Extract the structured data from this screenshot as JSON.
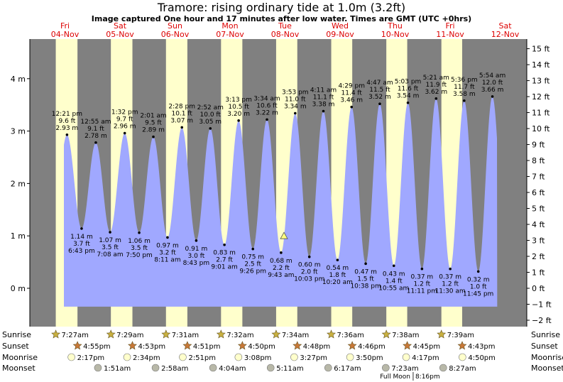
{
  "title": "Tramore: rising  ordinary tide at 1.0m (3.2ft)",
  "subtitle": "Image captured One hour and 17 minutes after low water. Times are GMT (UTC +0hrs)",
  "colors": {
    "night": "#808080",
    "day": "#ffffcc",
    "tide": "#a0a8ff",
    "date_text": "#dd0000",
    "now_marker": "#ffff80"
  },
  "chart_data": {
    "type": "area",
    "title": "Tramore: rising  ordinary tide at 1.0m (3.2ft)",
    "days": [
      {
        "dow": "Fri",
        "date": "04-Nov"
      },
      {
        "dow": "Sat",
        "date": "05-Nov"
      },
      {
        "dow": "Sun",
        "date": "06-Nov"
      },
      {
        "dow": "Mon",
        "date": "07-Nov"
      },
      {
        "dow": "Tue",
        "date": "08-Nov"
      },
      {
        "dow": "Wed",
        "date": "09-Nov"
      },
      {
        "dow": "Thu",
        "date": "10-Nov"
      },
      {
        "dow": "Fri",
        "date": "11-Nov"
      },
      {
        "dow": "Sat",
        "date": "12-Nov"
      }
    ],
    "y_left": {
      "unit": "m",
      "ylim": [
        -0.6,
        4.6
      ],
      "ticks": [
        "0 m",
        "1 m",
        "2 m",
        "3 m",
        "4 m"
      ],
      "tick_values": [
        0,
        1,
        2,
        3,
        4
      ]
    },
    "y_right": {
      "unit": "ft",
      "ticks": [
        "−2 ft",
        "−1 ft",
        "0 ft",
        "1 ft",
        "2 ft",
        "3 ft",
        "4 ft",
        "5 ft",
        "6 ft",
        "7 ft",
        "8 ft",
        "9 ft",
        "10 ft",
        "11 ft",
        "12 ft",
        "13 ft",
        "14 ft",
        "15 ft"
      ],
      "tick_values": [
        -2,
        -1,
        0,
        1,
        2,
        3,
        4,
        5,
        6,
        7,
        8,
        9,
        10,
        11,
        12,
        13,
        14,
        15
      ]
    },
    "tides": [
      {
        "day": 0,
        "time": "12:21 pm",
        "m": 2.93,
        "ft": "9.6 ft",
        "m_label": "2.93 m",
        "type": "high"
      },
      {
        "day": 0,
        "time": "6:43 pm",
        "m": 1.14,
        "ft": "3.7 ft",
        "m_label": "1.14 m",
        "type": "low"
      },
      {
        "day": 1,
        "time": "12:55 am",
        "m": 2.78,
        "ft": "9.1 ft",
        "m_label": "2.78 m",
        "type": "high"
      },
      {
        "day": 1,
        "time": "7:08 am",
        "m": 1.07,
        "ft": "3.5 ft",
        "m_label": "1.07 m",
        "type": "low"
      },
      {
        "day": 1,
        "time": "1:32 pm",
        "m": 2.96,
        "ft": "9.7 ft",
        "m_label": "2.96 m",
        "type": "high"
      },
      {
        "day": 1,
        "time": "7:50 pm",
        "m": 1.06,
        "ft": "3.5 ft",
        "m_label": "1.06 m",
        "type": "low"
      },
      {
        "day": 2,
        "time": "2:01 am",
        "m": 2.89,
        "ft": "9.5 ft",
        "m_label": "2.89 m",
        "type": "high"
      },
      {
        "day": 2,
        "time": "8:11 am",
        "m": 0.97,
        "ft": "3.2 ft",
        "m_label": "0.97 m",
        "type": "low"
      },
      {
        "day": 2,
        "time": "2:28 pm",
        "m": 3.07,
        "ft": "10.1 ft",
        "m_label": "3.07 m",
        "type": "high"
      },
      {
        "day": 2,
        "time": "8:43 pm",
        "m": 0.91,
        "ft": "3.0 ft",
        "m_label": "0.91 m",
        "type": "low"
      },
      {
        "day": 3,
        "time": "2:52 am",
        "m": 3.05,
        "ft": "10.0 ft",
        "m_label": "3.05 m",
        "type": "high"
      },
      {
        "day": 3,
        "time": "9:01 am",
        "m": 0.83,
        "ft": "2.7 ft",
        "m_label": "0.83 m",
        "type": "low"
      },
      {
        "day": 3,
        "time": "3:13 pm",
        "m": 3.2,
        "ft": "10.5 ft",
        "m_label": "3.20 m",
        "type": "high"
      },
      {
        "day": 3,
        "time": "9:26 pm",
        "m": 0.75,
        "ft": "2.5 ft",
        "m_label": "0.75 m",
        "type": "low"
      },
      {
        "day": 4,
        "time": "3:34 am",
        "m": 3.22,
        "ft": "10.6 ft",
        "m_label": "3.22 m",
        "type": "high"
      },
      {
        "day": 4,
        "time": "9:43 am",
        "m": 0.68,
        "ft": "2.2 ft",
        "m_label": "0.68 m",
        "type": "low"
      },
      {
        "day": 4,
        "time": "3:53 pm",
        "m": 3.34,
        "ft": "11.0 ft",
        "m_label": "3.34 m",
        "type": "high"
      },
      {
        "day": 4,
        "time": "10:03 pm",
        "m": 0.6,
        "ft": "2.0 ft",
        "m_label": "0.60 m",
        "type": "low"
      },
      {
        "day": 5,
        "time": "4:11 am",
        "m": 3.38,
        "ft": "11.1 ft",
        "m_label": "3.38 m",
        "type": "high"
      },
      {
        "day": 5,
        "time": "10:20 am",
        "m": 0.54,
        "ft": "1.8 ft",
        "m_label": "0.54 m",
        "type": "low"
      },
      {
        "day": 5,
        "time": "4:29 pm",
        "m": 3.46,
        "ft": "11.4 ft",
        "m_label": "3.46 m",
        "type": "high"
      },
      {
        "day": 5,
        "time": "10:38 pm",
        "m": 0.47,
        "ft": "1.5 ft",
        "m_label": "0.47 m",
        "type": "low"
      },
      {
        "day": 6,
        "time": "4:47 am",
        "m": 3.52,
        "ft": "11.5 ft",
        "m_label": "3.52 m",
        "type": "high"
      },
      {
        "day": 6,
        "time": "10:55 am",
        "m": 0.43,
        "ft": "1.4 ft",
        "m_label": "0.43 m",
        "type": "low"
      },
      {
        "day": 6,
        "time": "5:03 pm",
        "m": 3.54,
        "ft": "11.6 ft",
        "m_label": "3.54 m",
        "type": "high"
      },
      {
        "day": 6,
        "time": "11:11 pm",
        "m": 0.37,
        "ft": "1.2 ft",
        "m_label": "0.37 m",
        "type": "low"
      },
      {
        "day": 7,
        "time": "5:21 am",
        "m": 3.62,
        "ft": "11.9 ft",
        "m_label": "3.62 m",
        "type": "high"
      },
      {
        "day": 7,
        "time": "11:30 am",
        "m": 0.37,
        "ft": "1.2 ft",
        "m_label": "0.37 m",
        "type": "low"
      },
      {
        "day": 7,
        "time": "5:36 pm",
        "m": 3.58,
        "ft": "11.7 ft",
        "m_label": "3.58 m",
        "type": "high"
      },
      {
        "day": 7,
        "time": "11:45 pm",
        "m": 0.32,
        "ft": "1.0 ft",
        "m_label": "0.32 m",
        "type": "low"
      },
      {
        "day": 8,
        "time": "5:54 am",
        "m": 3.66,
        "ft": "12.0 ft",
        "m_label": "3.66 m",
        "type": "high"
      }
    ],
    "now_marker": {
      "day": 4,
      "time": "11:00 am",
      "m": 1.0
    },
    "tide_range": {
      "start": {
        "day": 0,
        "time": "11:00 am"
      },
      "end": {
        "day": 8,
        "time": "8:00 am"
      },
      "floor_m": -0.35
    },
    "sun_moon": {
      "row_labels": [
        "Sunrise",
        "Sunset",
        "Moonrise",
        "Moonset"
      ],
      "sunrise": [
        "7:27am",
        "7:29am",
        "7:31am",
        "7:32am",
        "7:34am",
        "7:36am",
        "7:38am",
        "7:39am"
      ],
      "sunset": [
        "4:55pm",
        "4:53pm",
        "4:51pm",
        "4:50pm",
        "4:48pm",
        "4:46pm",
        "4:45pm",
        "4:43pm"
      ],
      "moonrise": [
        "2:17pm",
        "2:34pm",
        "2:51pm",
        "3:08pm",
        "3:27pm",
        "3:50pm",
        "4:17pm",
        "4:50pm"
      ],
      "moonset": [
        "",
        "1:51am",
        "2:58am",
        "4:04am",
        "5:11am",
        "6:17am",
        "7:23am",
        "8:27am"
      ]
    },
    "moon_phase": {
      "label": "Full Moon",
      "time": "8:16pm",
      "day": 6
    }
  }
}
